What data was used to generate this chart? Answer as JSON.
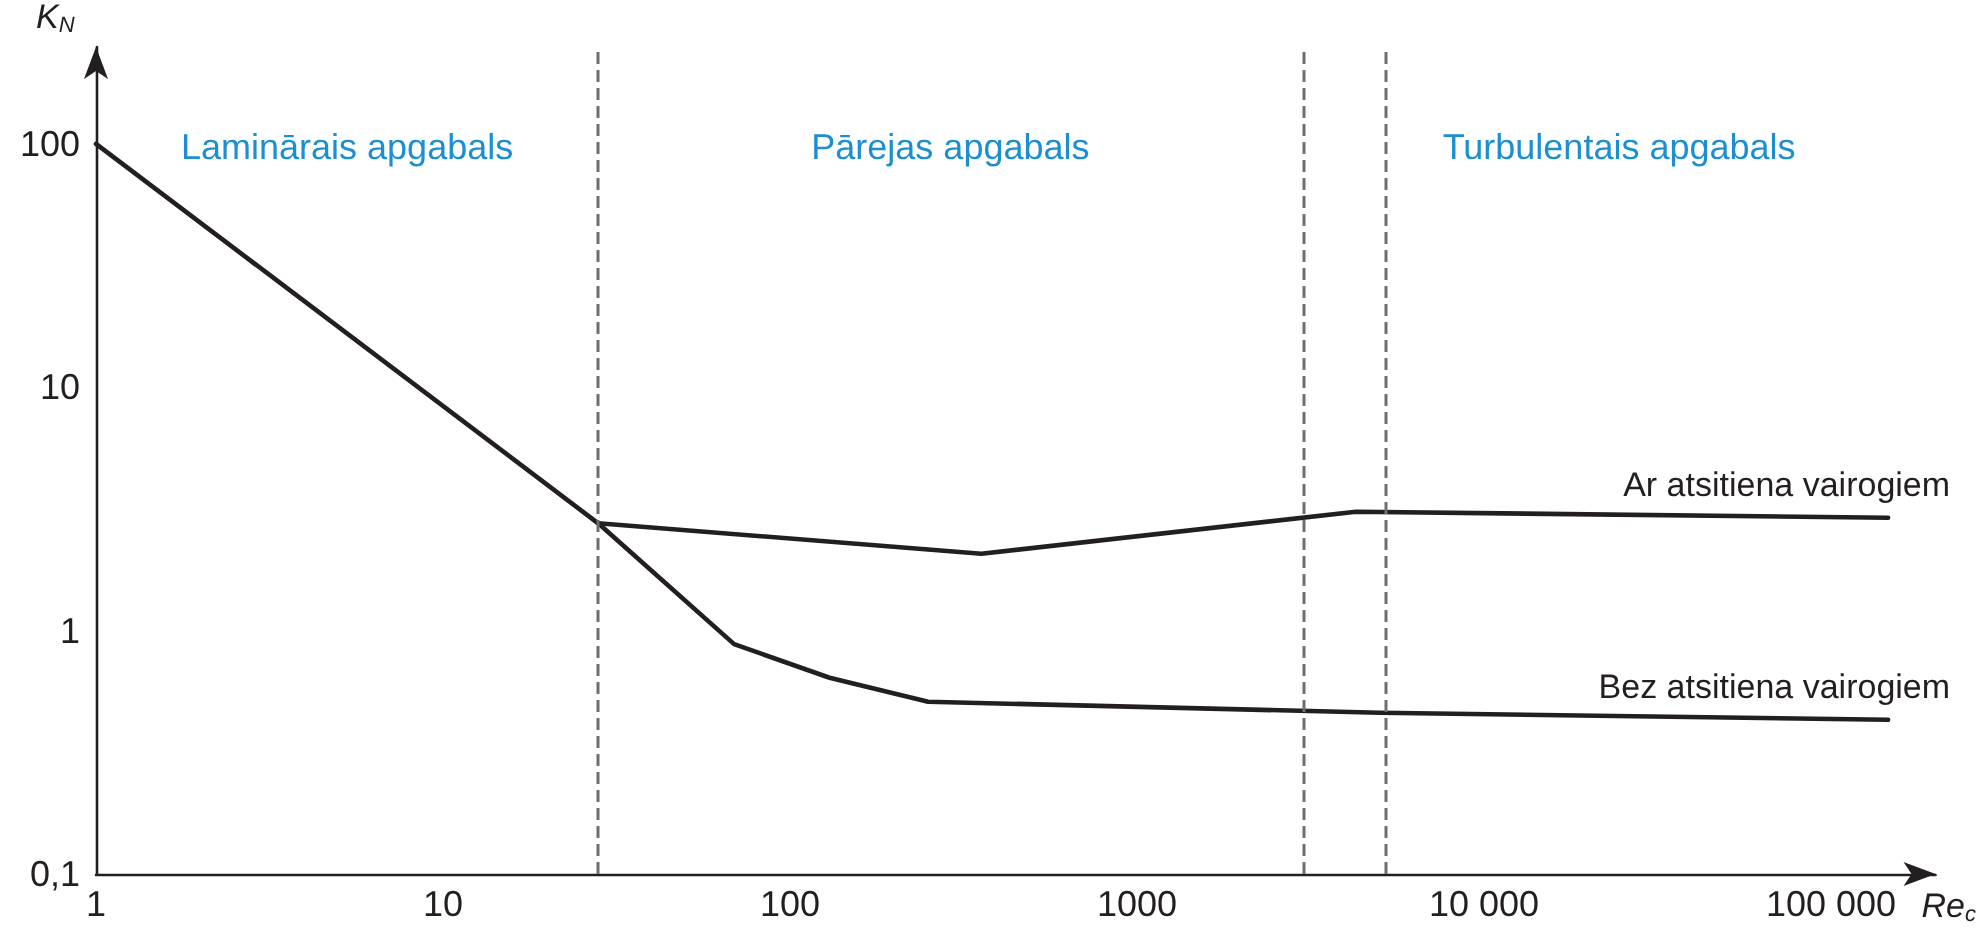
{
  "chart_data": {
    "type": "line",
    "log": "xy",
    "xlabel": "Re$_{c}$",
    "ylabel": "K$_{N}$",
    "xlim": [
      1,
      200000
    ],
    "ylim": [
      0.1,
      250
    ],
    "xticks": [
      1,
      10,
      100,
      1000,
      {
        "value": 10000,
        "label": "10 000"
      },
      {
        "value": 100000,
        "label": "100 000"
      }
    ],
    "yticks": [
      {
        "value": 0.1,
        "label": "0,1"
      },
      1,
      10,
      100
    ],
    "grid": false,
    "legend": false,
    "marker": "none",
    "line_style": "solid",
    "series": [
      {
        "name": "Ar atsitiena vairogiem",
        "color": "#231f20",
        "x": [
          28,
          356,
          4270,
          146000
        ],
        "values": [
          2.76,
          2.07,
          3.08,
          2.91
        ]
      },
      {
        "name": "Bez atsitiena vairogiem",
        "color": "#231f20",
        "x": [
          1,
          28,
          69,
          130,
          250,
          5000,
          146000
        ],
        "values": [
          100,
          2.76,
          0.88,
          0.64,
          0.51,
          0.46,
          0.43
        ]
      }
    ],
    "ref_lines": [
      {
        "axis": "x",
        "value": 28,
        "color": "#6d6e71",
        "line_style": "dashed"
      },
      {
        "axis": "x",
        "value": 3000,
        "color": "#6d6e71",
        "line_style": "dashed"
      },
      {
        "axis": "x",
        "value": 5200,
        "color": "#6d6e71",
        "line_style": "dashed"
      }
    ],
    "annotations": [
      "Laminārais apgabals",
      "Pārejas apgabals",
      "Turbulentais apgabals"
    ]
  }
}
